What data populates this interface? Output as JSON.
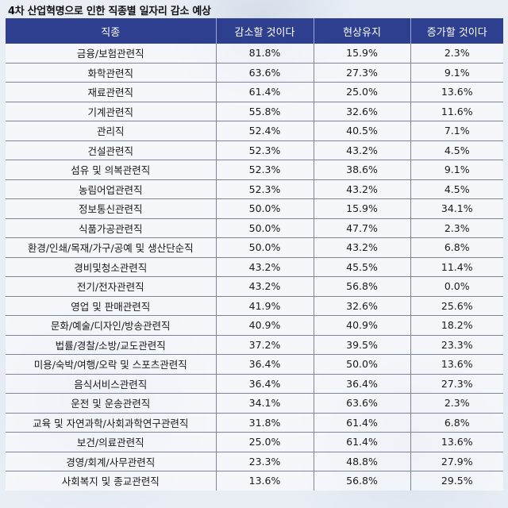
{
  "title": "4차 산업혁명으로 인한 직종별 일자리 감소 예상",
  "table": {
    "headers": [
      "직종",
      "감소할 것이다",
      "현상유지",
      "증가할 것이다"
    ],
    "rows": [
      [
        "금융/보험관련직",
        "81.8%",
        "15.9%",
        "2.3%"
      ],
      [
        "화학관련직",
        "63.6%",
        "27.3%",
        "9.1%"
      ],
      [
        "재료관련직",
        "61.4%",
        "25.0%",
        "13.6%"
      ],
      [
        "기계관련직",
        "55.8%",
        "32.6%",
        "11.6%"
      ],
      [
        "관리직",
        "52.4%",
        "40.5%",
        "7.1%"
      ],
      [
        "건설관련직",
        "52.3%",
        "43.2%",
        "4.5%"
      ],
      [
        "섬유 및 의복관련직",
        "52.3%",
        "38.6%",
        "9.1%"
      ],
      [
        "농림어업관련직",
        "52.3%",
        "43.2%",
        "4.5%"
      ],
      [
        "정보통신관련직",
        "50.0%",
        "15.9%",
        "34.1%"
      ],
      [
        "식품가공관련직",
        "50.0%",
        "47.7%",
        "2.3%"
      ],
      [
        "환경/인쇄/목재/가구/공예 및 생산단순직",
        "50.0%",
        "43.2%",
        "6.8%"
      ],
      [
        "경비및청소관련직",
        "43.2%",
        "45.5%",
        "11.4%"
      ],
      [
        "전기/전자관련직",
        "43.2%",
        "56.8%",
        "0.0%"
      ],
      [
        "영업 및 판매관련직",
        "41.9%",
        "32.6%",
        "25.6%"
      ],
      [
        "문화/예술/디자인/방송관련직",
        "40.9%",
        "40.9%",
        "18.2%"
      ],
      [
        "법률/경찰/소방/교도관련직",
        "37.2%",
        "39.5%",
        "23.3%"
      ],
      [
        "미용/숙박/여행/오락 및 스포츠관련직",
        "36.4%",
        "50.0%",
        "13.6%"
      ],
      [
        "음식서비스관련직",
        "36.4%",
        "36.4%",
        "27.3%"
      ],
      [
        "운전 및 운송관련직",
        "34.1%",
        "63.6%",
        "2.3%"
      ],
      [
        "교육 및 자연과학/사회과학연구관련직",
        "31.8%",
        "61.4%",
        "6.8%"
      ],
      [
        "보건/의료관련직",
        "25.0%",
        "61.4%",
        "13.6%"
      ],
      [
        "경영/회계/사무관련직",
        "23.3%",
        "48.8%",
        "27.9%"
      ],
      [
        "사회복지 및 종교관련직",
        "13.6%",
        "56.8%",
        "29.5%"
      ]
    ]
  }
}
